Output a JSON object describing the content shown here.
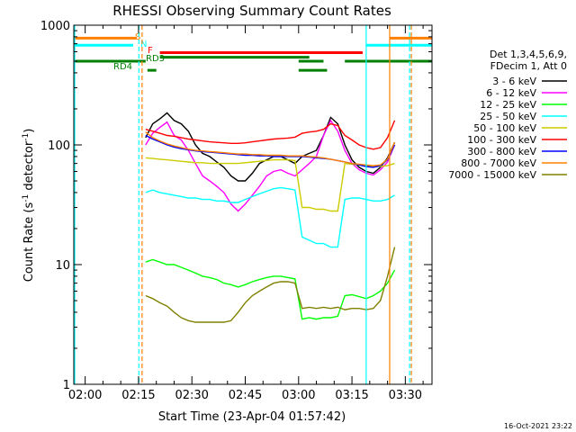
{
  "chart_data": {
    "type": "line",
    "title": "RHESSI Observing Summary Count Rates",
    "xlabel": "Start Time (23-Apr-04 01:57:42)",
    "ylabel_main": "Count Rate (s",
    "ylabel_sup1": "-1",
    "ylabel_mid": " detector",
    "ylabel_sup2": "-1",
    "ylabel_end": ")",
    "yscale": "log",
    "ylim": [
      1,
      1000
    ],
    "xlim_minutes": [
      -3.2,
      97.5
    ],
    "x_ticks": [
      {
        "label": "02:00",
        "min": 0
      },
      {
        "label": "02:15",
        "min": 15
      },
      {
        "label": "02:30",
        "min": 30
      },
      {
        "label": "02:45",
        "min": 45
      },
      {
        "label": "03:00",
        "min": 60
      },
      {
        "label": "03:15",
        "min": 75
      },
      {
        "label": "03:30",
        "min": 90
      }
    ],
    "y_ticks": [
      {
        "label": "1",
        "v": 1
      },
      {
        "label": "10",
        "v": 10
      },
      {
        "label": "100",
        "v": 100
      },
      {
        "label": "1000",
        "v": 1000
      }
    ],
    "legend_header1": "Det 1,3,4,5,6,9,",
    "legend_header2": "FDecim 1, Att 0",
    "legend_placement": "right",
    "series": [
      {
        "name": "3 - 6 keV",
        "color": "#000000",
        "x": [
          17,
          19,
          21,
          23,
          25,
          27,
          29,
          31,
          33,
          35,
          37,
          39,
          41,
          43,
          45,
          47,
          49,
          51,
          53,
          55,
          57,
          59,
          61,
          63,
          65,
          67,
          69,
          71,
          73,
          75,
          77,
          79,
          81,
          83,
          85,
          87
        ],
        "y": [
          115,
          150,
          165,
          185,
          160,
          150,
          130,
          100,
          85,
          80,
          72,
          65,
          55,
          50,
          50,
          58,
          70,
          75,
          80,
          80,
          75,
          70,
          80,
          85,
          90,
          120,
          170,
          150,
          100,
          75,
          65,
          60,
          58,
          65,
          78,
          105
        ]
      },
      {
        "name": "6 - 12 keV",
        "color": "#ff00ff",
        "x": [
          17,
          19,
          21,
          23,
          25,
          27,
          29,
          31,
          33,
          35,
          37,
          39,
          41,
          43,
          45,
          47,
          49,
          51,
          53,
          55,
          57,
          59,
          61,
          63,
          65,
          67,
          69,
          71,
          73,
          75,
          77,
          79,
          81,
          83,
          85,
          87
        ],
        "y": [
          100,
          125,
          140,
          155,
          120,
          110,
          90,
          70,
          55,
          50,
          45,
          40,
          32,
          28,
          32,
          38,
          45,
          55,
          60,
          62,
          58,
          55,
          62,
          70,
          80,
          120,
          160,
          130,
          90,
          70,
          62,
          58,
          56,
          62,
          72,
          100
        ]
      },
      {
        "name": "12 - 25 keV",
        "color": "#00ff00",
        "x": [
          17,
          19,
          21,
          23,
          25,
          27,
          29,
          31,
          33,
          35,
          37,
          39,
          41,
          43,
          45,
          47,
          49,
          51,
          53,
          55,
          57,
          59,
          61,
          63,
          65,
          67,
          69,
          71,
          73,
          75,
          77,
          79,
          81,
          83,
          85,
          87
        ],
        "y": [
          10.5,
          11,
          10.5,
          10,
          10,
          9.5,
          9,
          8.5,
          8,
          7.8,
          7.5,
          7,
          6.8,
          6.5,
          6.8,
          7.2,
          7.5,
          7.8,
          8,
          8,
          7.8,
          7.6,
          3.5,
          3.6,
          3.5,
          3.6,
          3.6,
          3.7,
          5.5,
          5.6,
          5.4,
          5.2,
          5.5,
          6,
          7,
          9
        ]
      },
      {
        "name": "25 - 50 keV",
        "color": "#00ffff",
        "x": [
          17,
          19,
          21,
          23,
          25,
          27,
          29,
          31,
          33,
          35,
          37,
          39,
          41,
          43,
          45,
          47,
          49,
          51,
          53,
          55,
          57,
          59,
          61,
          63,
          65,
          67,
          69,
          71,
          73,
          75,
          77,
          79,
          81,
          83,
          85,
          87
        ],
        "y": [
          40,
          42,
          40,
          39,
          38,
          37,
          36,
          36,
          35,
          35,
          34,
          34,
          33,
          33,
          35,
          37,
          39,
          41,
          43,
          44,
          43,
          42,
          17,
          16,
          15,
          15,
          14,
          14,
          35,
          36,
          36,
          35,
          34,
          34,
          35,
          38
        ]
      },
      {
        "name": "50 - 100 keV",
        "color": "#cccc00",
        "x": [
          17,
          19,
          21,
          23,
          25,
          27,
          29,
          31,
          33,
          35,
          37,
          39,
          41,
          43,
          45,
          47,
          49,
          51,
          53,
          55,
          57,
          59,
          61,
          63,
          65,
          67,
          69,
          71,
          73,
          75,
          77,
          79,
          81,
          83,
          85,
          87
        ],
        "y": [
          78,
          77,
          76,
          75,
          74,
          73,
          72,
          71,
          71,
          70,
          70,
          70,
          70,
          70,
          71,
          72,
          73,
          74,
          75,
          75,
          75,
          74,
          30,
          30,
          29,
          29,
          28,
          28,
          70,
          69,
          68,
          67,
          66,
          66,
          67,
          70
        ]
      },
      {
        "name": "100 - 300 keV",
        "color": "#ff0000",
        "x": [
          17,
          19,
          21,
          23,
          25,
          27,
          29,
          31,
          33,
          35,
          37,
          39,
          41,
          43,
          45,
          47,
          49,
          51,
          53,
          55,
          57,
          59,
          61,
          63,
          65,
          67,
          69,
          71,
          73,
          75,
          77,
          79,
          81,
          83,
          85,
          87
        ],
        "y": [
          135,
          130,
          125,
          120,
          118,
          115,
          112,
          110,
          108,
          106,
          105,
          104,
          103,
          103,
          104,
          106,
          108,
          110,
          112,
          113,
          114,
          116,
          125,
          128,
          130,
          135,
          150,
          145,
          120,
          110,
          100,
          95,
          92,
          95,
          115,
          160
        ]
      },
      {
        "name": "300 - 800 keV",
        "color": "#0000ff",
        "x": [
          17,
          19,
          21,
          23,
          25,
          27,
          29,
          31,
          33,
          35,
          37,
          39,
          41,
          43,
          45,
          47,
          49,
          51,
          53,
          55,
          57,
          59,
          61,
          63,
          65,
          67,
          69,
          71,
          73,
          75,
          77,
          79,
          81,
          83,
          85,
          87
        ],
        "y": [
          120,
          112,
          106,
          100,
          96,
          93,
          91,
          89,
          88,
          87,
          86,
          85,
          84,
          83,
          82,
          82,
          81,
          81,
          80,
          80,
          80,
          80,
          80,
          79,
          78,
          77,
          76,
          74,
          72,
          70,
          68,
          66,
          65,
          67,
          75,
          100
        ]
      },
      {
        "name": "800 - 7000 keV",
        "color": "#ff8000",
        "x": [
          17,
          19,
          21,
          23,
          25,
          27,
          29,
          31,
          33,
          35,
          37,
          39,
          41,
          43,
          45,
          47,
          49,
          51,
          53,
          55,
          57,
          59,
          61,
          63,
          65,
          67,
          69,
          71,
          73,
          75,
          77,
          79,
          81,
          83,
          85,
          87
        ],
        "y": [
          128,
          115,
          108,
          102,
          98,
          95,
          92,
          90,
          89,
          88,
          87,
          86,
          85,
          84,
          84,
          83,
          83,
          82,
          82,
          82,
          81,
          81,
          81,
          80,
          79,
          78,
          76,
          74,
          72,
          70,
          69,
          68,
          67,
          68,
          76,
          105
        ]
      },
      {
        "name": "7000 - 15000 keV",
        "color": "#808000",
        "x": [
          17,
          19,
          21,
          23,
          25,
          27,
          29,
          31,
          33,
          35,
          37,
          39,
          41,
          43,
          45,
          47,
          49,
          51,
          53,
          55,
          57,
          59,
          61,
          63,
          65,
          67,
          69,
          71,
          73,
          75,
          77,
          79,
          81,
          83,
          85,
          87
        ],
        "y": [
          5.5,
          5.2,
          4.8,
          4.5,
          4,
          3.6,
          3.4,
          3.3,
          3.3,
          3.3,
          3.3,
          3.3,
          3.4,
          4,
          4.8,
          5.5,
          6,
          6.5,
          7,
          7.2,
          7.2,
          7,
          4.3,
          4.4,
          4.3,
          4.4,
          4.3,
          4.4,
          4.2,
          4.3,
          4.3,
          4.2,
          4.3,
          5,
          8,
          14
        ]
      }
    ],
    "flag_bars": [
      {
        "label": "S",
        "color": "#ff8000",
        "level": 780,
        "segments": [
          [
            -3.2,
            14.5
          ],
          [
            85.5,
            97.5
          ]
        ]
      },
      {
        "label": "N",
        "color": "#00ffff",
        "level": 680,
        "segments": [
          [
            -3.2,
            13.5
          ],
          [
            79,
            97.5
          ]
        ]
      },
      {
        "label": "F",
        "color": "#ff0000",
        "level": 590,
        "segments": [
          [
            21,
            78
          ]
        ]
      },
      {
        "label": "RD3",
        "color": "#008000",
        "level": 540,
        "segments": [
          [
            21,
            63
          ]
        ]
      },
      {
        "label": "RD4",
        "color": "#008000",
        "level": 500,
        "segments": [
          [
            -3.2,
            17
          ],
          [
            60,
            67
          ],
          [
            73,
            97.5
          ]
        ]
      }
    ],
    "flag_extra_segments": [
      {
        "color": "#008000",
        "level": 420,
        "segments": [
          [
            17.5,
            20
          ],
          [
            60,
            68
          ]
        ]
      }
    ],
    "vertical_markers": [
      {
        "color": "#00ffff",
        "x": 15.1,
        "dashed": true
      },
      {
        "color": "#ff8000",
        "x": 16.0,
        "dashed": true
      },
      {
        "color": "#00ffff",
        "x": 79.0,
        "dashed": false
      },
      {
        "color": "#ff8000",
        "x": 85.6,
        "dashed": false
      },
      {
        "color": "#00ffff",
        "x": 91.2,
        "dashed": true
      },
      {
        "color": "#ff8000",
        "x": 91.7,
        "dashed": true
      }
    ],
    "grid": false
  },
  "timestamp": "16-Oct-2021 23:22"
}
